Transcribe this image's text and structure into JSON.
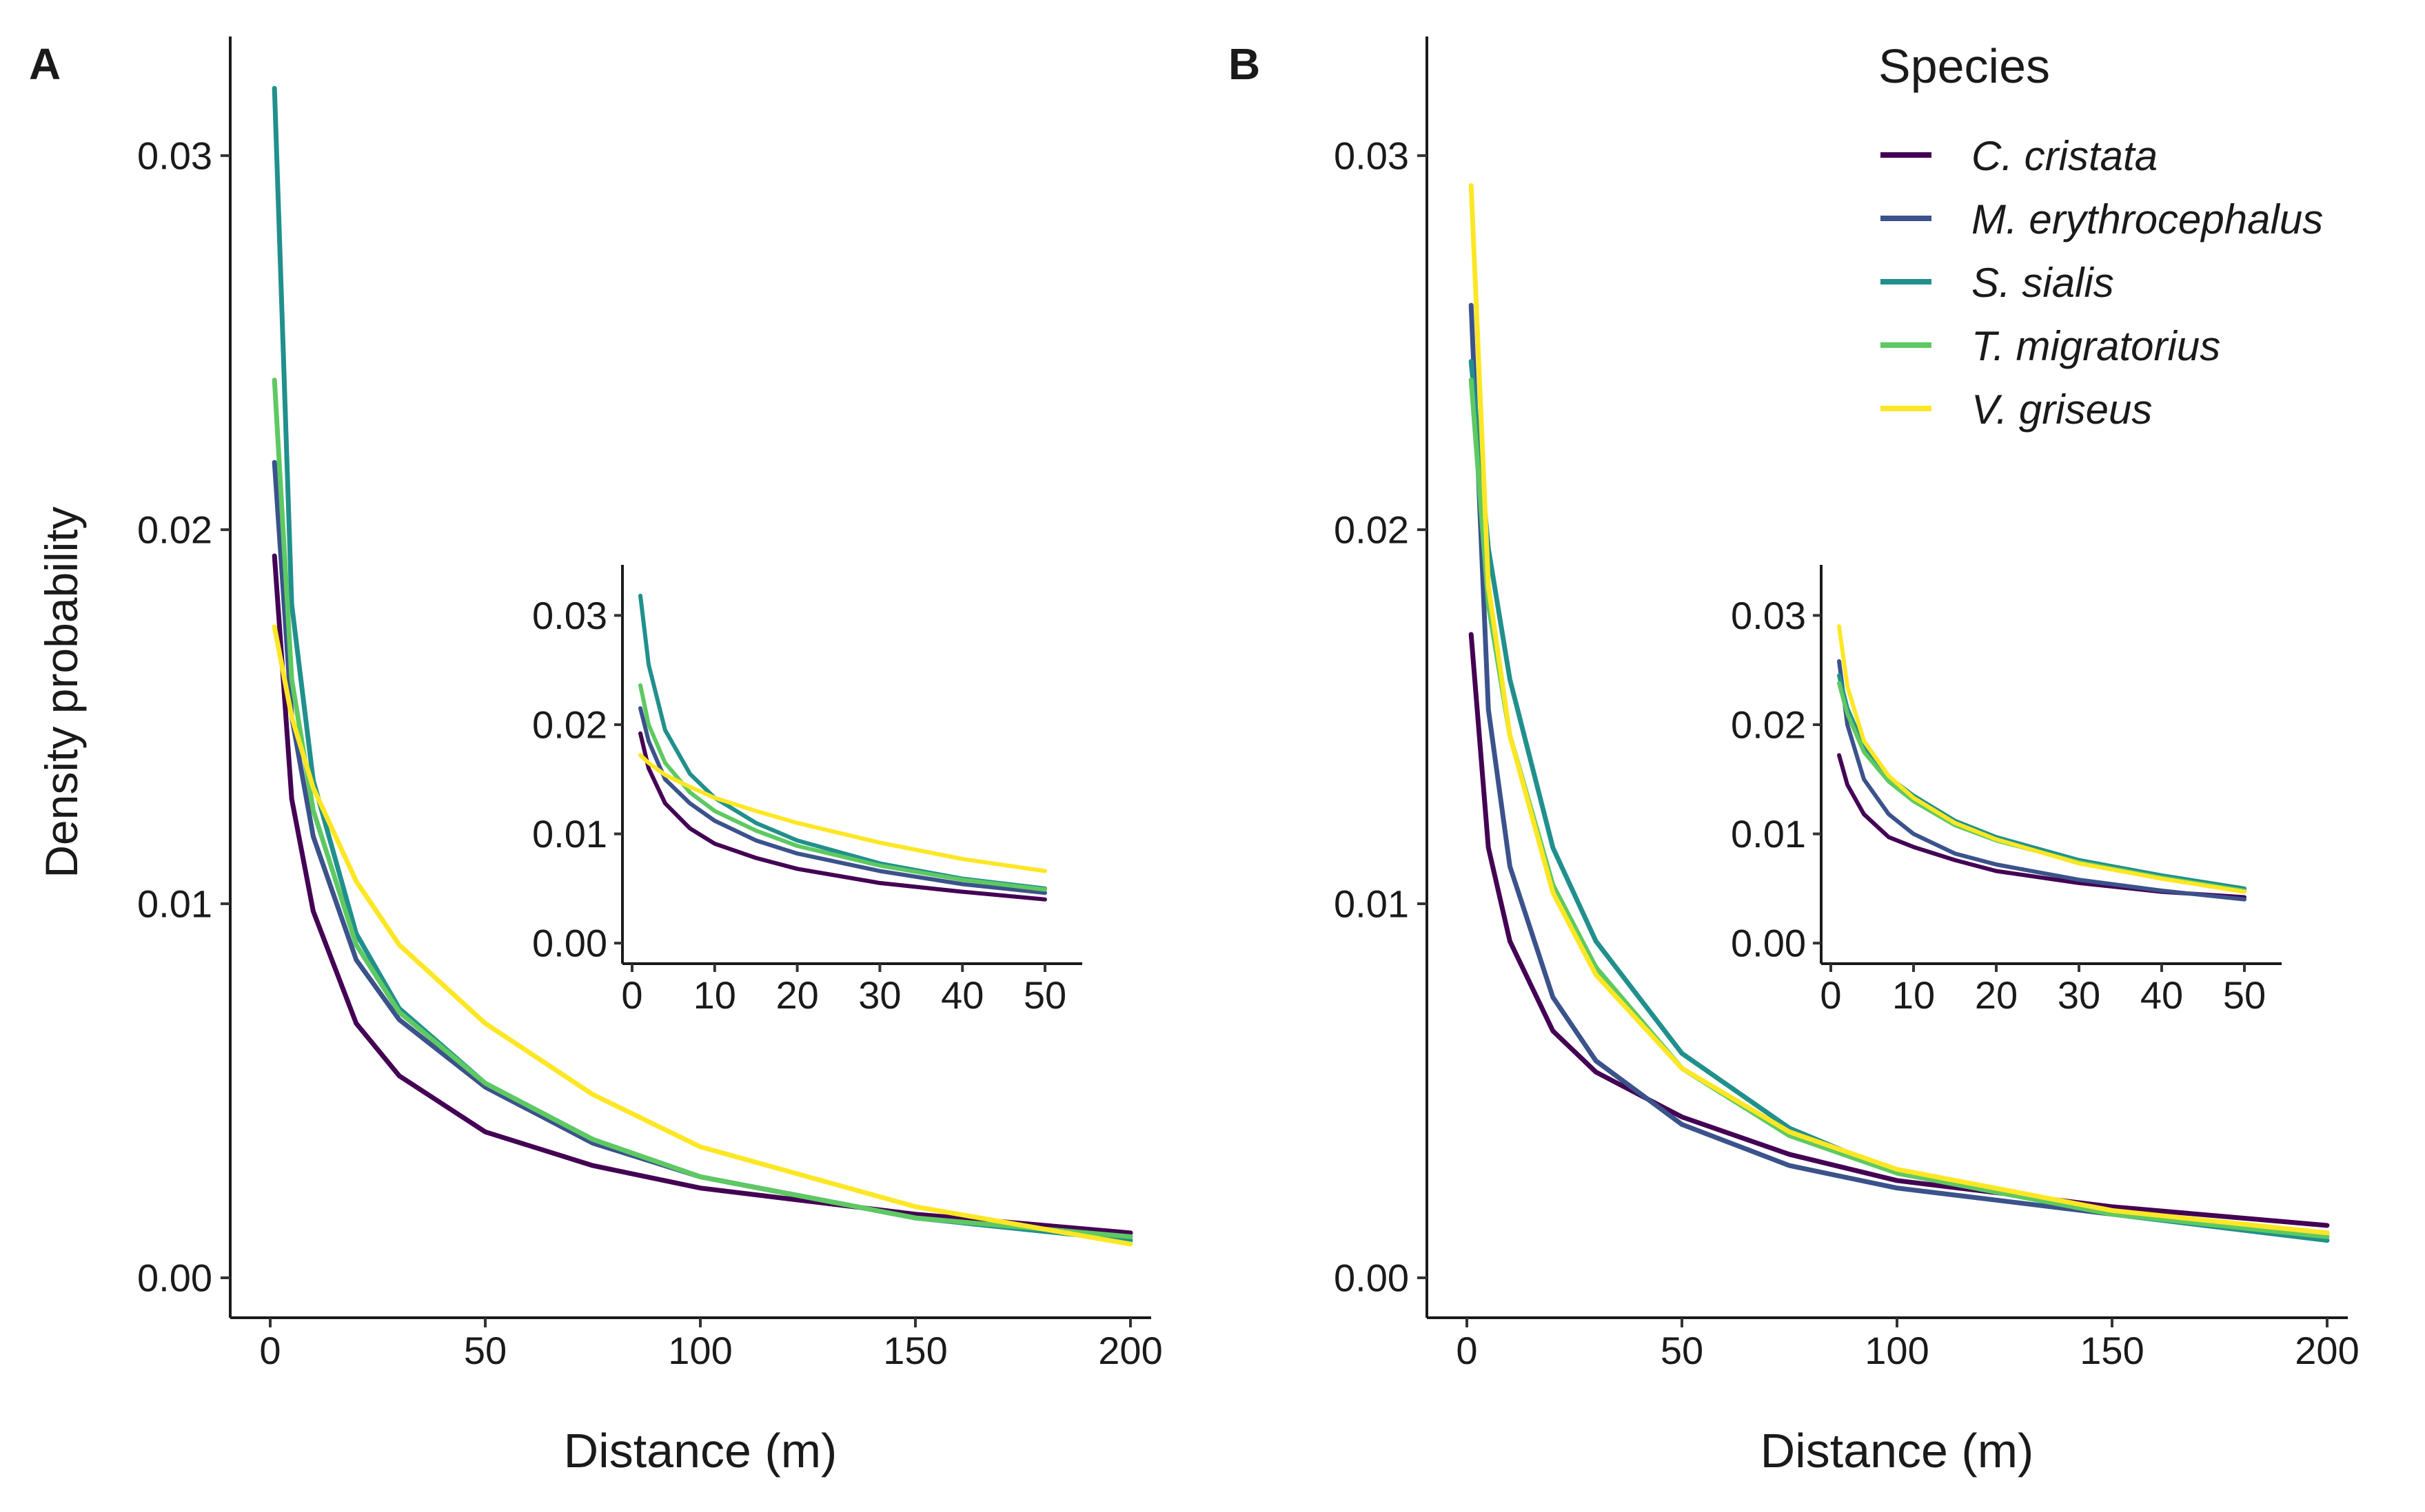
{
  "figure": {
    "panel_labels": [
      "A",
      "B"
    ],
    "legend_title": "Species",
    "species": [
      "C. cristata",
      "M. erythrocephalus",
      "S. sialis",
      "T. migratorius",
      "V. griseus"
    ],
    "colors": [
      "#440154",
      "#3b528b",
      "#21908c",
      "#5ec962",
      "#fde725"
    ]
  },
  "chart_data": [
    {
      "panel": "A",
      "type": "line",
      "xlabel": "Distance (m)",
      "ylabel": "Density probability",
      "xlim": [
        0,
        200
      ],
      "ylim": [
        0,
        0.033
      ],
      "xticks": [
        "0",
        "50",
        "100",
        "150",
        "200"
      ],
      "yticks": [
        "0.00",
        "0.01",
        "0.02",
        "0.03"
      ],
      "x": [
        1,
        5,
        10,
        20,
        30,
        50,
        75,
        100,
        150,
        200
      ],
      "series": [
        {
          "name": "C. cristata",
          "color": "#440154",
          "values": [
            0.0193,
            0.0128,
            0.0098,
            0.0068,
            0.0054,
            0.0039,
            0.003,
            0.0024,
            0.0017,
            0.0012
          ]
        },
        {
          "name": "M. erythrocephalus",
          "color": "#3b528b",
          "values": [
            0.0218,
            0.015,
            0.0118,
            0.0085,
            0.0069,
            0.0051,
            0.0036,
            0.0027,
            0.0016,
            0.0011
          ]
        },
        {
          "name": "S. sialis",
          "color": "#21908c",
          "values": [
            0.0318,
            0.018,
            0.0133,
            0.0092,
            0.0072,
            0.0052,
            0.0037,
            0.0027,
            0.0016,
            0.001
          ]
        },
        {
          "name": "T. migratorius",
          "color": "#5ec962",
          "values": [
            0.024,
            0.016,
            0.0125,
            0.0089,
            0.0071,
            0.0052,
            0.0037,
            0.0027,
            0.0016,
            0.0011
          ]
        },
        {
          "name": "V. griseus",
          "color": "#fde725",
          "values": [
            0.0174,
            0.015,
            0.0131,
            0.0106,
            0.0089,
            0.0068,
            0.0049,
            0.0035,
            0.0019,
            0.0009
          ]
        }
      ],
      "inset": {
        "xlim": [
          0,
          52
        ],
        "ylim": [
          -0.001,
          0.034
        ],
        "xticks": [
          "0",
          "10",
          "20",
          "30",
          "40",
          "50"
        ],
        "yticks": [
          "0.00",
          "0.01",
          "0.02",
          "0.03"
        ],
        "x": [
          1,
          2,
          4,
          7,
          10,
          15,
          20,
          30,
          40,
          50
        ],
        "series": [
          {
            "name": "C. cristata",
            "values": [
              0.0192,
              0.016,
              0.0128,
              0.0105,
              0.0091,
              0.0078,
              0.0068,
              0.0055,
              0.0047,
              0.004
            ]
          },
          {
            "name": "M. erythrocephalus",
            "values": [
              0.0215,
              0.0185,
              0.015,
              0.0128,
              0.0112,
              0.0094,
              0.0082,
              0.0066,
              0.0054,
              0.0046
            ]
          },
          {
            "name": "S. sialis",
            "values": [
              0.0318,
              0.0255,
              0.0195,
              0.0155,
              0.0133,
              0.011,
              0.0094,
              0.0073,
              0.0059,
              0.005
            ]
          },
          {
            "name": "T. migratorius",
            "values": [
              0.0236,
              0.02,
              0.0165,
              0.0138,
              0.0121,
              0.0103,
              0.0089,
              0.0071,
              0.0058,
              0.0049
            ]
          },
          {
            "name": "V. griseus",
            "values": [
              0.0172,
              0.0165,
              0.0154,
              0.0143,
              0.0133,
              0.0121,
              0.011,
              0.0092,
              0.0077,
              0.0066
            ]
          }
        ]
      }
    },
    {
      "panel": "B",
      "type": "line",
      "xlabel": "Distance (m)",
      "ylabel": "",
      "xlim": [
        0,
        200
      ],
      "ylim": [
        0,
        0.033
      ],
      "xticks": [
        "0",
        "50",
        "100",
        "150",
        "200"
      ],
      "yticks": [
        "0.00",
        "0.01",
        "0.02",
        "0.03"
      ],
      "x": [
        1,
        5,
        10,
        20,
        30,
        50,
        75,
        100,
        150,
        200
      ],
      "series": [
        {
          "name": "C. cristata",
          "color": "#440154",
          "values": [
            0.0172,
            0.0115,
            0.009,
            0.0066,
            0.0055,
            0.0043,
            0.0033,
            0.0026,
            0.0019,
            0.0014
          ]
        },
        {
          "name": "M. erythrocephalus",
          "color": "#3b528b",
          "values": [
            0.026,
            0.0152,
            0.011,
            0.0075,
            0.0058,
            0.0041,
            0.003,
            0.0024,
            0.0017,
            0.0012
          ]
        },
        {
          "name": "S. sialis",
          "color": "#21908c",
          "values": [
            0.0245,
            0.0195,
            0.016,
            0.0115,
            0.009,
            0.006,
            0.004,
            0.0028,
            0.0017,
            0.001
          ]
        },
        {
          "name": "T. migratorius",
          "color": "#5ec962",
          "values": [
            0.024,
            0.018,
            0.0145,
            0.0105,
            0.0083,
            0.0056,
            0.0038,
            0.0028,
            0.0017,
            0.0011
          ]
        },
        {
          "name": "V. griseus",
          "color": "#fde725",
          "values": [
            0.0292,
            0.0185,
            0.0145,
            0.0103,
            0.0081,
            0.0056,
            0.0039,
            0.0029,
            0.0018,
            0.0012
          ]
        }
      ],
      "inset": {
        "xlim": [
          0,
          52
        ],
        "ylim": [
          -0.001,
          0.034
        ],
        "xticks": [
          "0",
          "10",
          "20",
          "30",
          "40",
          "50"
        ],
        "yticks": [
          "0.00",
          "0.01",
          "0.02",
          "0.03"
        ],
        "x": [
          1,
          2,
          4,
          7,
          10,
          15,
          20,
          30,
          40,
          50
        ],
        "series": [
          {
            "name": "C. cristata",
            "values": [
              0.0172,
              0.0145,
              0.0118,
              0.0097,
              0.0088,
              0.0076,
              0.0066,
              0.0055,
              0.0047,
              0.0042
            ]
          },
          {
            "name": "M. erythrocephalus",
            "values": [
              0.0258,
              0.02,
              0.015,
              0.0118,
              0.01,
              0.0082,
              0.0072,
              0.0058,
              0.0048,
              0.004
            ]
          },
          {
            "name": "S. sialis",
            "values": [
              0.0245,
              0.0215,
              0.018,
              0.0152,
              0.0135,
              0.0112,
              0.0097,
              0.0076,
              0.0062,
              0.005
            ]
          },
          {
            "name": "T. migratorius",
            "values": [
              0.0238,
              0.021,
              0.0175,
              0.0148,
              0.013,
              0.0108,
              0.0094,
              0.0074,
              0.006,
              0.0048
            ]
          },
          {
            "name": "V. griseus",
            "values": [
              0.029,
              0.0235,
              0.0185,
              0.0153,
              0.0133,
              0.011,
              0.0095,
              0.0073,
              0.0059,
              0.0047
            ]
          }
        ]
      }
    }
  ]
}
